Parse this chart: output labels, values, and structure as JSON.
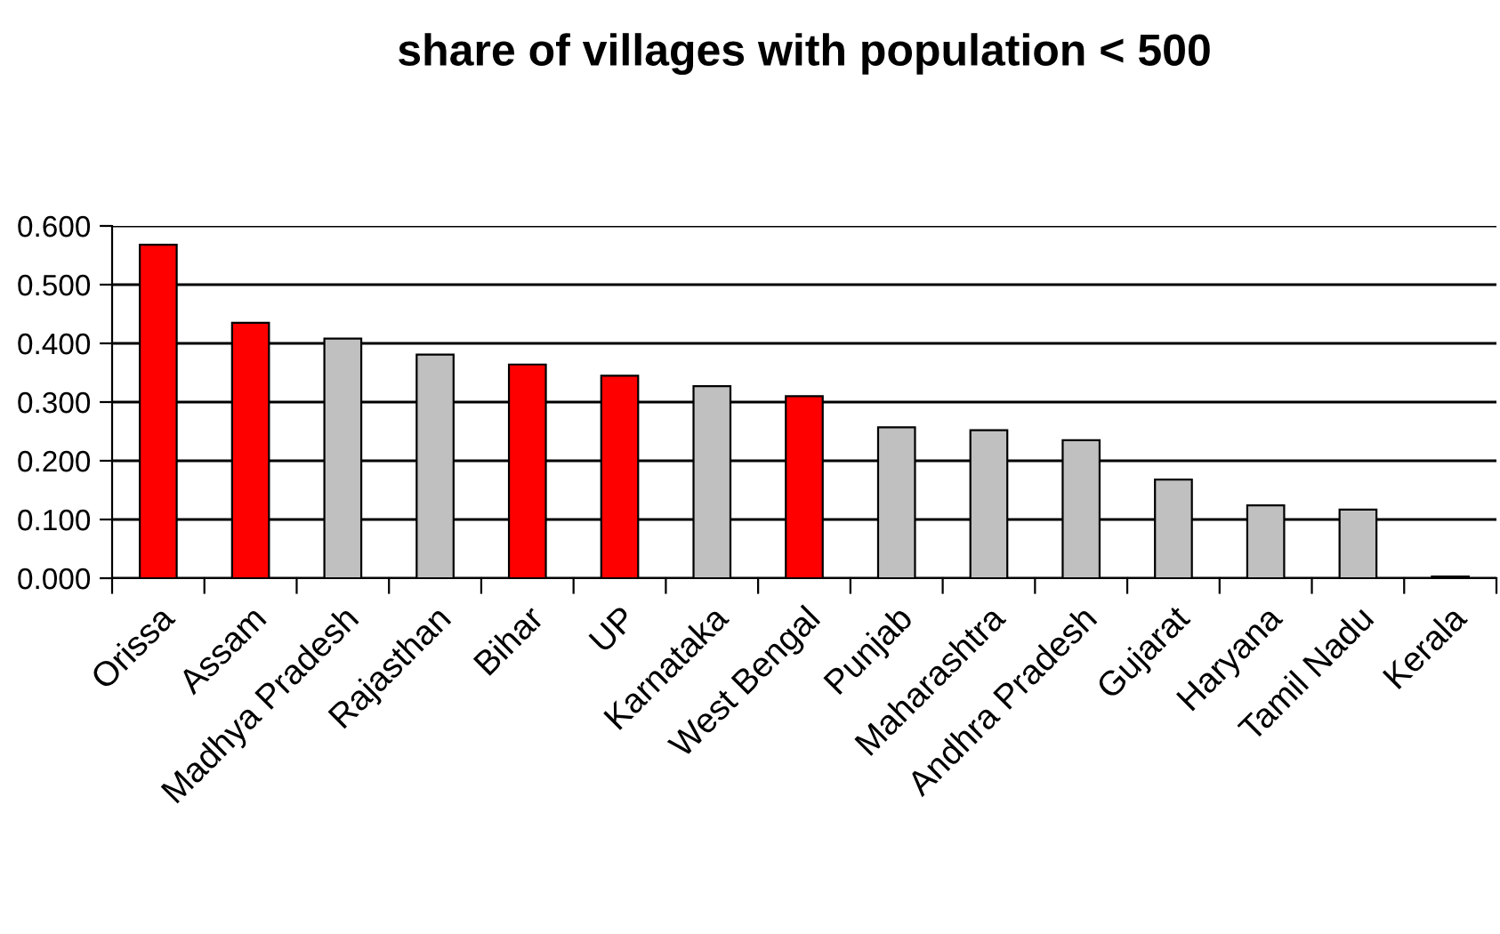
{
  "chart_data": {
    "type": "bar",
    "title": "share of villages with population < 500",
    "categories": [
      "Orissa",
      "Assam",
      "Madhya Pradesh",
      "Rajasthan",
      "Bihar",
      "UP",
      "Karnataka",
      "West Bengal",
      "Punjab",
      "Maharashtra",
      "Andhra Pradesh",
      "Gujarat",
      "Haryana",
      "Tamil Nadu",
      "Kerala"
    ],
    "values": [
      0.568,
      0.435,
      0.408,
      0.381,
      0.364,
      0.345,
      0.327,
      0.31,
      0.257,
      0.252,
      0.235,
      0.168,
      0.124,
      0.117,
      0.003
    ],
    "colors": [
      "#ff0000",
      "#ff0000",
      "#c0c0c0",
      "#c0c0c0",
      "#ff0000",
      "#ff0000",
      "#c0c0c0",
      "#ff0000",
      "#c0c0c0",
      "#c0c0c0",
      "#c0c0c0",
      "#c0c0c0",
      "#c0c0c0",
      "#c0c0c0",
      "#c0c0c0"
    ],
    "ylim": [
      0,
      0.6
    ],
    "yticks": [
      {
        "value": 0,
        "label": "0.000"
      },
      {
        "value": 0.1,
        "label": "0.100"
      },
      {
        "value": 0.2,
        "label": "0.200"
      },
      {
        "value": 0.3,
        "label": "0.300"
      },
      {
        "value": 0.4,
        "label": "0.400"
      },
      {
        "value": 0.5,
        "label": "0.500"
      },
      {
        "value": 0.6,
        "label": "0.600"
      }
    ],
    "grid": "y"
  }
}
